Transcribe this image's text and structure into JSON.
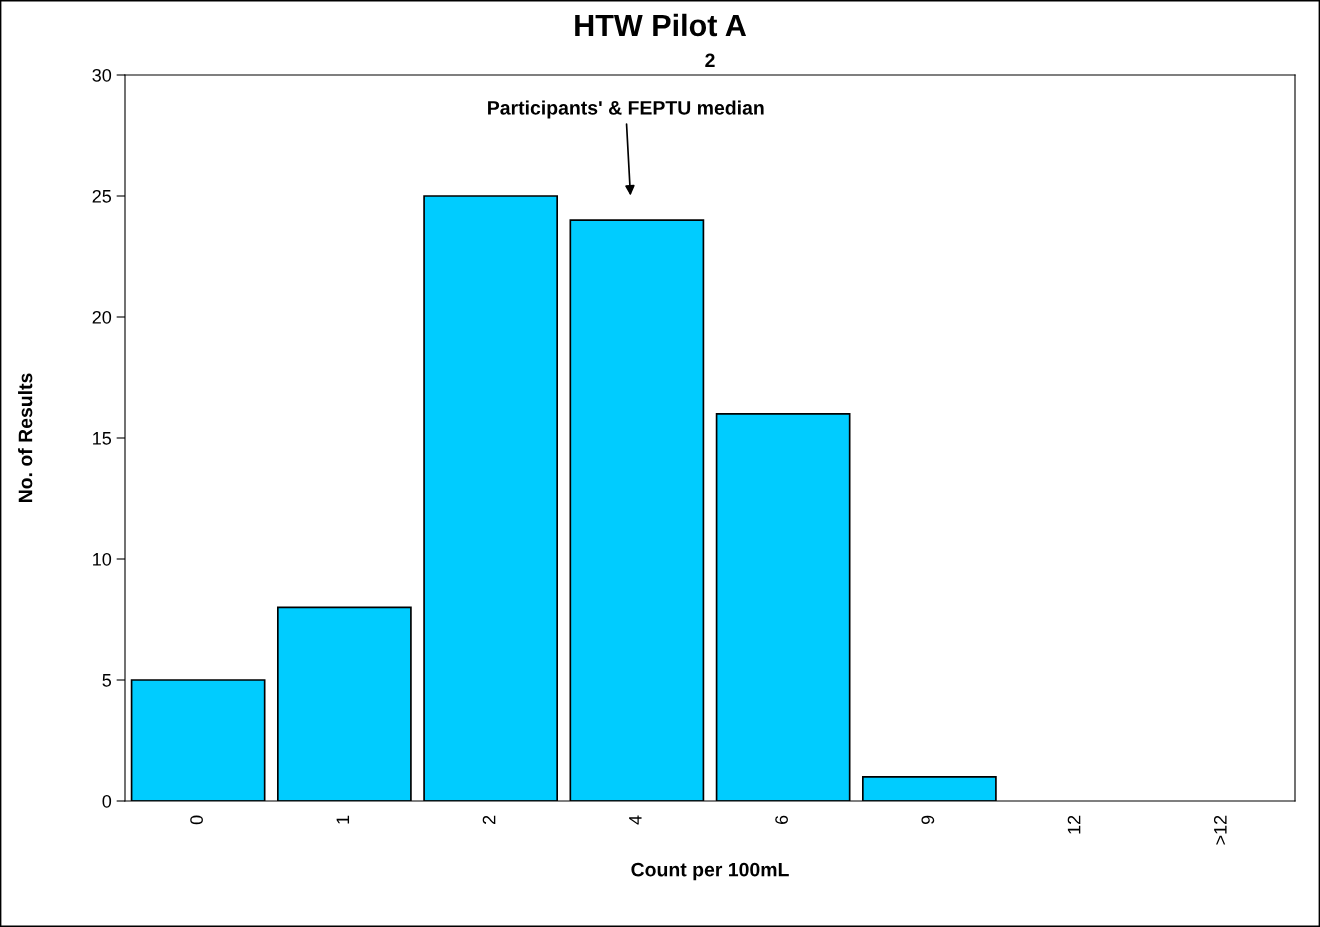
{
  "chart_data": {
    "type": "bar",
    "title": "HTW Pilot A",
    "subtitle": "2",
    "xlabel": "Count per 100mL",
    "ylabel": "No. of Results",
    "categories": [
      "0",
      "1",
      "2",
      "4",
      "6",
      "9",
      "12",
      ">12"
    ],
    "values": [
      5,
      8,
      25,
      24,
      16,
      1,
      0,
      0
    ],
    "color": "#00ccff",
    "ylim": [
      0,
      30
    ],
    "yticks": [
      0,
      5,
      10,
      15,
      20,
      25,
      30
    ],
    "grid": false,
    "annotations": [
      "Participants' & FEPTU median"
    ]
  }
}
